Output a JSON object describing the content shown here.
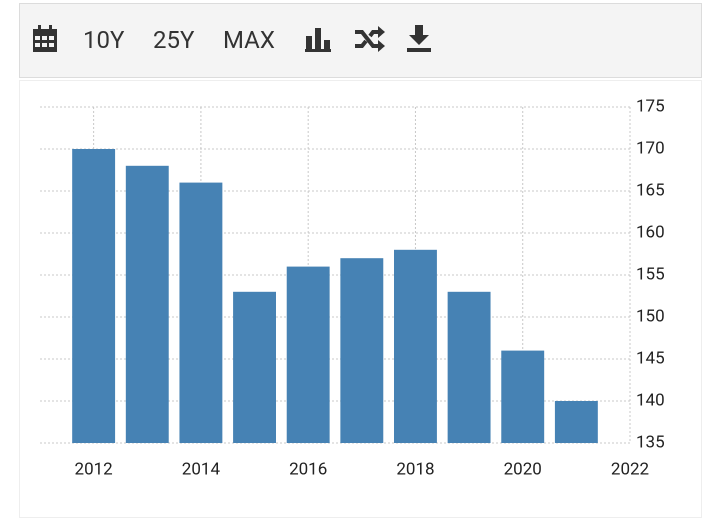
{
  "toolbar": {
    "buttons": [
      "10Y",
      "25Y",
      "MAX"
    ]
  },
  "chart_data": {
    "type": "bar",
    "x": [
      2012,
      2013,
      2014,
      2015,
      2016,
      2017,
      2018,
      2019,
      2020,
      2021
    ],
    "values": [
      170,
      168,
      166,
      153,
      156,
      157,
      158,
      153,
      146,
      140
    ],
    "color": "#4682b4",
    "xlim": [
      2011,
      2022
    ],
    "xticks": [
      2012,
      2014,
      2016,
      2018,
      2020,
      2022
    ],
    "ylim": [
      135,
      175
    ],
    "yticks": [
      135,
      140,
      145,
      150,
      155,
      160,
      165,
      170,
      175
    ],
    "grid": true,
    "y_axis_side": "right"
  }
}
